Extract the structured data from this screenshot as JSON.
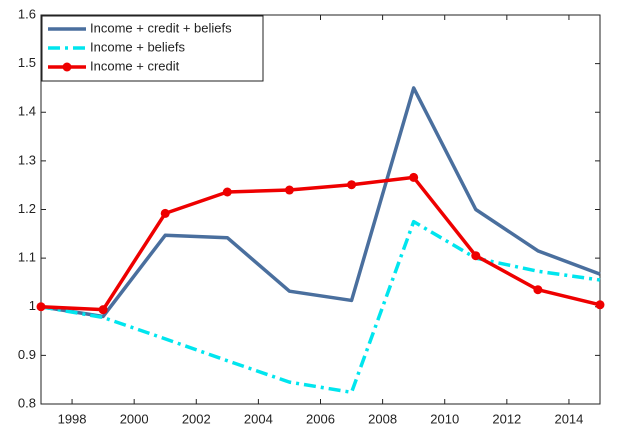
{
  "chart_data": {
    "type": "line",
    "x": [
      1997,
      1999,
      2001,
      2003,
      2005,
      2007,
      2009,
      2011,
      2013,
      2015
    ],
    "series": [
      {
        "name": "Income + credit + beliefs",
        "color": "#4a6f9e",
        "linestyle": "solid",
        "marker": "none",
        "values": [
          1.0,
          0.98,
          1.147,
          1.142,
          1.032,
          1.013,
          1.45,
          1.2,
          1.115,
          1.067
        ]
      },
      {
        "name": "Income + beliefs",
        "color": "#00e5ee",
        "linestyle": "dashdot",
        "marker": "none",
        "values": [
          1.0,
          0.978,
          0.934,
          0.889,
          0.845,
          0.824,
          1.175,
          1.1,
          1.073,
          1.055
        ]
      },
      {
        "name": "Income + credit",
        "color": "#ee0000",
        "linestyle": "solid",
        "marker": "circle",
        "values": [
          1.0,
          0.994,
          1.192,
          1.236,
          1.24,
          1.251,
          1.266,
          1.105,
          1.035,
          1.004
        ]
      }
    ],
    "xlim": [
      1997,
      2015
    ],
    "xticks": [
      1998,
      2000,
      2002,
      2004,
      2006,
      2008,
      2010,
      2012,
      2014
    ],
    "ylim": [
      0.8,
      1.6
    ],
    "yticks": [
      0.8,
      0.9,
      1,
      1.1,
      1.2,
      1.3,
      1.4,
      1.5,
      1.6
    ],
    "grid": false,
    "legend_position": "upper-left"
  }
}
